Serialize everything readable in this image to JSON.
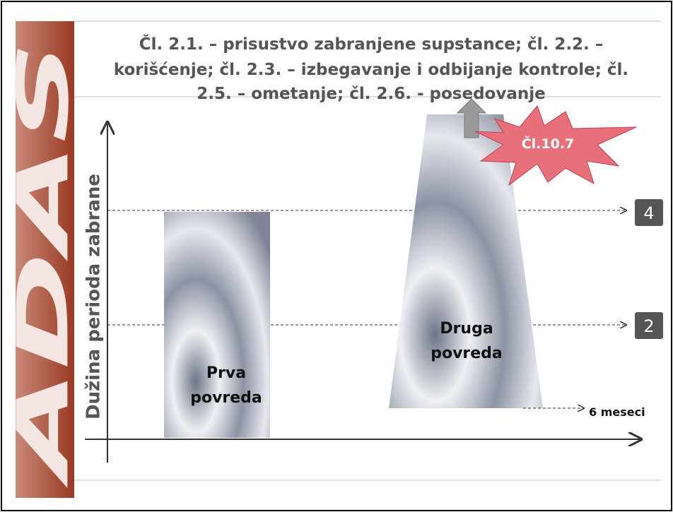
{
  "logo": "ADAS",
  "title": [
    "Čl. 2.1. – prisustvo zabranjene supstance; čl. 2.2. –",
    "korišćenje; čl. 2.3. – izbegavanje i odbijanje kontrole; čl.",
    "2.5. – ometanje; čl. 2.6. - posedovanje"
  ],
  "axis_label": "Dužina perioda zabrane",
  "bars": [
    {
      "label": [
        "Prva",
        "povreda"
      ]
    },
    {
      "label": [
        "Druga",
        "povreda"
      ]
    }
  ],
  "badge": "Čl.10.7",
  "levels": [
    {
      "label": 4
    },
    {
      "label": 2
    }
  ],
  "note": "6 meseci"
}
